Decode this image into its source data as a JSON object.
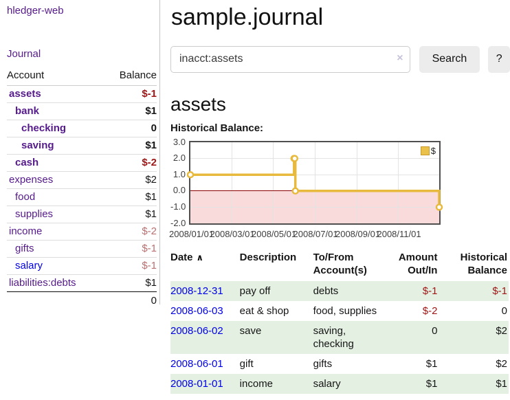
{
  "app": {
    "title": "hledger-web"
  },
  "colors": {
    "link_purple": "#551a8b",
    "link_blue": "#0000e6",
    "negative_strong": "#9e1616",
    "negative_muted": "#b96f6f",
    "row_shade_green": "#e4f0e2",
    "chart_line_gold": "#e7ba3d",
    "chart_negative_fill": "#fadbdb",
    "chart_zero_line": "#8b0000",
    "button_bg": "#ececec"
  },
  "sidebar": {
    "journal_label": "Journal",
    "accounts_table": {
      "headers": {
        "account": "Account",
        "balance": "Balance"
      },
      "rows": [
        {
          "name": "assets",
          "depth": 0,
          "bold": true,
          "link_color": "purple",
          "balance": "$-1",
          "negative": "strong"
        },
        {
          "name": "bank",
          "depth": 1,
          "bold": true,
          "link_color": "purple",
          "balance": "$1",
          "negative": null
        },
        {
          "name": "checking",
          "depth": 2,
          "bold": true,
          "link_color": "purple",
          "balance": "0",
          "negative": null
        },
        {
          "name": "saving",
          "depth": 2,
          "bold": true,
          "link_color": "purple",
          "balance": "$1",
          "negative": null
        },
        {
          "name": "cash",
          "depth": 1,
          "bold": true,
          "link_color": "purple",
          "balance": "$-2",
          "negative": "strong"
        },
        {
          "name": "expenses",
          "depth": 0,
          "bold": false,
          "link_color": "purple",
          "balance": "$2",
          "negative": null
        },
        {
          "name": "food",
          "depth": 1,
          "bold": false,
          "link_color": "purple",
          "balance": "$1",
          "negative": null
        },
        {
          "name": "supplies",
          "depth": 1,
          "bold": false,
          "link_color": "purple",
          "balance": "$1",
          "negative": null
        },
        {
          "name": "income",
          "depth": 0,
          "bold": false,
          "link_color": "purple",
          "balance": "$-2",
          "negative": "muted"
        },
        {
          "name": "gifts",
          "depth": 1,
          "bold": false,
          "link_color": "purple",
          "balance": "$-1",
          "negative": "muted"
        },
        {
          "name": "salary",
          "depth": 1,
          "bold": false,
          "link_color": "blue",
          "balance": "$-1",
          "negative": "muted"
        },
        {
          "name": "liabilities:debts",
          "depth": 0,
          "bold": false,
          "link_color": "purple",
          "balance": "$1",
          "negative": null
        }
      ],
      "total": "0"
    }
  },
  "main": {
    "title": "sample.journal",
    "search": {
      "value": "inacct:assets",
      "clear_icon": "×",
      "search_button": "Search",
      "help_button": "?"
    },
    "account_heading": "assets",
    "chart_label": "Historical Balance:",
    "register": {
      "headers": {
        "date": "Date",
        "description": "Description",
        "accounts": "To/From Account(s)",
        "amount": "Amount Out/In",
        "balance": "Historical Balance"
      },
      "sort_icon": "∧",
      "rows": [
        {
          "date": "2008-12-31",
          "description": "pay off",
          "accounts": "debts",
          "amount": "$-1",
          "amount_negative": true,
          "balance": "$-1",
          "balance_negative": true,
          "shaded": true
        },
        {
          "date": "2008-06-03",
          "description": "eat & shop",
          "accounts": "food, supplies",
          "amount": "$-2",
          "amount_negative": true,
          "balance": "0",
          "balance_negative": false,
          "shaded": false
        },
        {
          "date": "2008-06-02",
          "description": "save",
          "accounts": "saving, checking",
          "amount": "0",
          "amount_negative": false,
          "balance": "$2",
          "balance_negative": false,
          "shaded": true
        },
        {
          "date": "2008-06-01",
          "description": "gift",
          "accounts": "gifts",
          "amount": "$1",
          "amount_negative": false,
          "balance": "$2",
          "balance_negative": false,
          "shaded": false
        },
        {
          "date": "2008-01-01",
          "description": "income",
          "accounts": "salary",
          "amount": "$1",
          "amount_negative": false,
          "balance": "$1",
          "balance_negative": false,
          "shaded": true
        }
      ]
    }
  },
  "chart_data": {
    "type": "line",
    "style": "step",
    "title": "Historical Balance:",
    "legend": "$",
    "legend_position": "top-right",
    "grid": true,
    "ylim": [
      -2.0,
      3.0
    ],
    "x_domain": [
      "2008-01-01",
      "2008-12-31"
    ],
    "y_ticks": [
      "3.0",
      "2.0",
      "1.0",
      "0.0",
      "-1.0",
      "-2.0"
    ],
    "x_ticks": [
      "2008/01/01",
      "2008/03/01",
      "2008/05/01",
      "2008/07/01",
      "2008/09/01",
      "2008/11/01"
    ],
    "series": [
      {
        "name": "$",
        "points": [
          {
            "x": "2008-01-01",
            "y": 1
          },
          {
            "x": "2008-06-01",
            "y": 2
          },
          {
            "x": "2008-06-02",
            "y": 2
          },
          {
            "x": "2008-06-03",
            "y": 0
          },
          {
            "x": "2008-12-31",
            "y": -1
          }
        ]
      }
    ]
  }
}
